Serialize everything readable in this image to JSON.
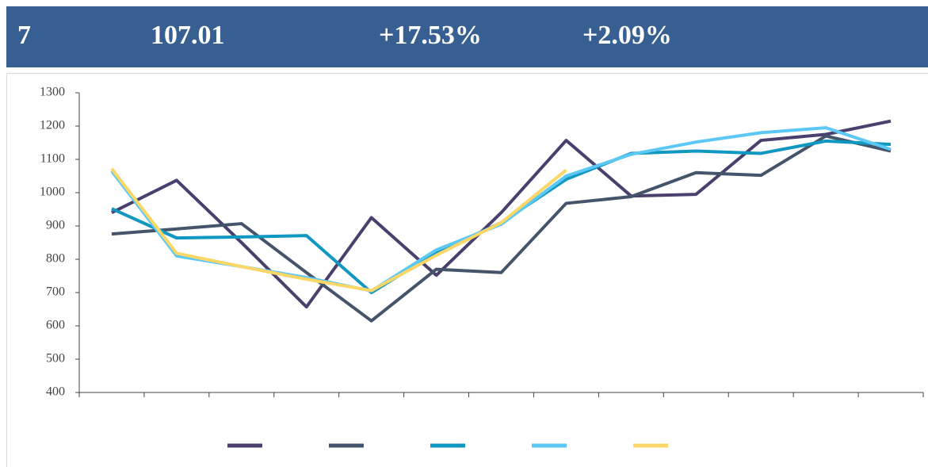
{
  "header": {
    "cells": [
      "7",
      "107.01",
      "+17.53%",
      "+2.09%"
    ]
  },
  "chart_data": {
    "type": "line",
    "categories": [
      null,
      null,
      null,
      null,
      null,
      null,
      null,
      null,
      null,
      null,
      null,
      null,
      null
    ],
    "series": [
      {
        "color": "#4b3f6e",
        "values": [
          940,
          1037,
          850,
          657,
          925,
          752,
          940,
          1157,
          990,
          995,
          1157,
          1175,
          1215
        ]
      },
      {
        "color": "#44546a",
        "values": [
          876,
          891,
          907,
          760,
          615,
          770,
          760,
          968,
          988,
          1060,
          1052,
          1170,
          1125
        ]
      },
      {
        "color": "#1097c2",
        "values": [
          952,
          864,
          867,
          871,
          700,
          820,
          910,
          1040,
          1118,
          1125,
          1118,
          1155,
          1145
        ]
      },
      {
        "color": "#5bc8f5",
        "values": [
          1065,
          810,
          778,
          745,
          705,
          828,
          905,
          1050,
          1115,
          1152,
          1180,
          1195,
          1130
        ]
      },
      {
        "color": "#fcd667",
        "values": [
          1072,
          818,
          778,
          740,
          706,
          812,
          910,
          1068,
          null,
          null,
          null,
          null,
          null
        ]
      }
    ],
    "ylim": [
      400,
      1300
    ],
    "yticks": [
      400,
      500,
      600,
      700,
      800,
      900,
      1000,
      1100,
      1200,
      1300
    ]
  }
}
